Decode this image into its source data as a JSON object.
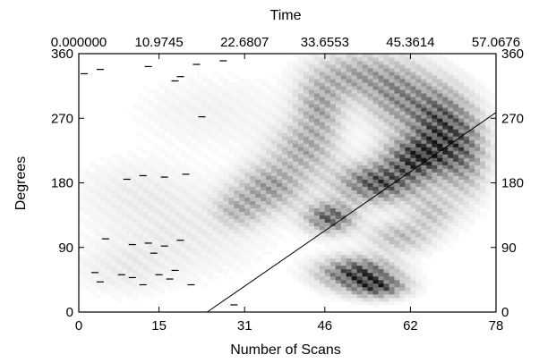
{
  "chart_data": {
    "type": "heatmap",
    "title": "",
    "xlabel": "Number of Scans",
    "x2label": "Time",
    "ylabel": "Degrees",
    "xlim": [
      0,
      78
    ],
    "ylim": [
      0,
      360
    ],
    "x_ticks": [
      "0",
      "15",
      "31",
      "46",
      "62",
      "78"
    ],
    "x_tick_values": [
      0,
      15,
      31,
      46,
      62,
      78
    ],
    "x2_ticks": [
      "0.000000",
      "10.9745",
      "22.6807",
      "33.6553",
      "45.3614",
      "57.0676"
    ],
    "y_ticks": [
      "0",
      "90",
      "180",
      "270",
      "360"
    ],
    "y_tick_values": [
      0,
      90,
      180,
      270,
      360
    ],
    "y2_ticks": [
      "0",
      "90",
      "180",
      "270",
      "360"
    ],
    "colormap": "white-to-black (higher intensity darker)",
    "intensity_blobs": [
      {
        "x": 52,
        "y": 55,
        "sx": 4.5,
        "sy": 14,
        "v": 1.0
      },
      {
        "x": 56,
        "y": 35,
        "sx": 3.5,
        "sy": 10,
        "v": 0.8
      },
      {
        "x": 47,
        "y": 132,
        "sx": 3,
        "sy": 14,
        "v": 0.85
      },
      {
        "x": 56,
        "y": 180,
        "sx": 5,
        "sy": 18,
        "v": 0.9
      },
      {
        "x": 63,
        "y": 215,
        "sx": 4,
        "sy": 20,
        "v": 0.9
      },
      {
        "x": 67,
        "y": 262,
        "sx": 3.5,
        "sy": 35,
        "v": 0.8
      },
      {
        "x": 72,
        "y": 225,
        "sx": 3,
        "sy": 40,
        "v": 0.6
      },
      {
        "x": 60,
        "y": 300,
        "sx": 4,
        "sy": 30,
        "v": 0.55
      },
      {
        "x": 52,
        "y": 330,
        "sx": 5,
        "sy": 22,
        "v": 0.45
      },
      {
        "x": 45,
        "y": 285,
        "sx": 3,
        "sy": 30,
        "v": 0.45
      },
      {
        "x": 36,
        "y": 175,
        "sx": 4,
        "sy": 22,
        "v": 0.5
      },
      {
        "x": 30,
        "y": 145,
        "sx": 3,
        "sy": 18,
        "v": 0.35
      },
      {
        "x": 42,
        "y": 225,
        "sx": 4,
        "sy": 25,
        "v": 0.4
      },
      {
        "x": 60,
        "y": 105,
        "sx": 4,
        "sy": 15,
        "v": 0.35
      },
      {
        "x": 66,
        "y": 140,
        "sx": 3,
        "sy": 18,
        "v": 0.3
      },
      {
        "x": 20,
        "y": 110,
        "sx": 10,
        "sy": 40,
        "v": 0.1
      },
      {
        "x": 10,
        "y": 170,
        "sx": 8,
        "sy": 30,
        "v": 0.08
      },
      {
        "x": 25,
        "y": 280,
        "sx": 10,
        "sy": 35,
        "v": 0.07
      },
      {
        "x": 8,
        "y": 60,
        "sx": 6,
        "sy": 25,
        "v": 0.09
      }
    ],
    "dash_marks": [
      {
        "x": 1,
        "y": 332
      },
      {
        "x": 4,
        "y": 338
      },
      {
        "x": 13,
        "y": 342
      },
      {
        "x": 18,
        "y": 322
      },
      {
        "x": 19,
        "y": 328
      },
      {
        "x": 22,
        "y": 345
      },
      {
        "x": 27,
        "y": 350
      },
      {
        "x": 23,
        "y": 272
      },
      {
        "x": 9,
        "y": 185
      },
      {
        "x": 12,
        "y": 190
      },
      {
        "x": 16,
        "y": 188
      },
      {
        "x": 20,
        "y": 192
      },
      {
        "x": 5,
        "y": 102
      },
      {
        "x": 10,
        "y": 94
      },
      {
        "x": 13,
        "y": 96
      },
      {
        "x": 14,
        "y": 82
      },
      {
        "x": 16,
        "y": 92
      },
      {
        "x": 19,
        "y": 100
      },
      {
        "x": 3,
        "y": 55
      },
      {
        "x": 4,
        "y": 42
      },
      {
        "x": 8,
        "y": 52
      },
      {
        "x": 10,
        "y": 48
      },
      {
        "x": 12,
        "y": 38
      },
      {
        "x": 15,
        "y": 52
      },
      {
        "x": 17,
        "y": 46
      },
      {
        "x": 18,
        "y": 58
      },
      {
        "x": 21,
        "y": 38
      },
      {
        "x": 29,
        "y": 10
      }
    ],
    "reference_line": {
      "x1": 24,
      "y1": 0,
      "x2": 78,
      "y2": 278
    },
    "grid": false
  }
}
